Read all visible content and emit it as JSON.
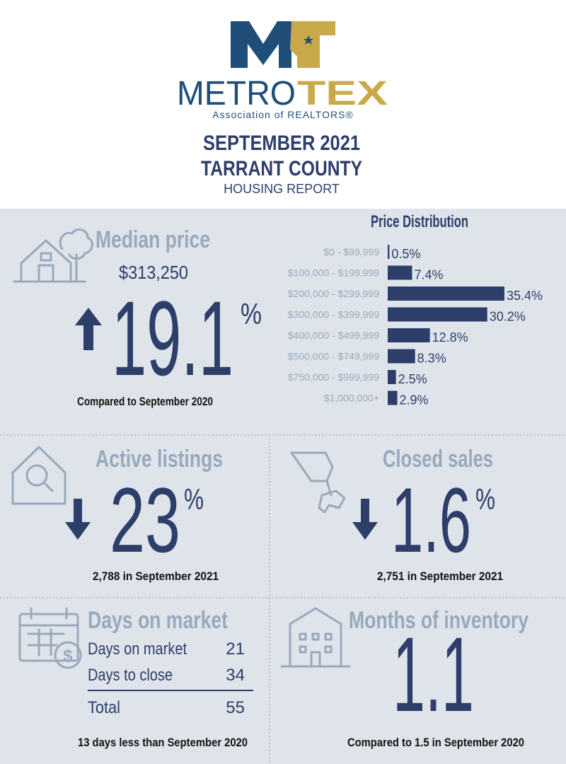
{
  "header": {
    "logo_left": "METRO",
    "logo_right": "TEX",
    "logo_tagline": "Association of REALTORS®",
    "title_line1": "SEPTEMBER 2021",
    "title_line2": "TARRANT COUNTY",
    "subtitle": "HOUSING REPORT"
  },
  "median_price": {
    "label": "Median price",
    "price": "$313,250",
    "change": "19.1",
    "unit": "%",
    "note": "Compared to September 2020"
  },
  "price_distribution": {
    "title": "Price Distribution",
    "categories": [
      "$0 - $99,999",
      "$100,000 - $199,999",
      "$200,000 - $299,999",
      "$300,000 - $399,999",
      "$400,000 - $499,999",
      "$500,000 - $749,999",
      "$750,000 - $999,999",
      "$1,000,000+"
    ],
    "values": [
      0.5,
      7.4,
      35.4,
      30.2,
      12.8,
      8.3,
      2.5,
      2.9
    ],
    "value_labels": [
      "0.5%",
      "7.4%",
      "35.4%",
      "30.2%",
      "12.8%",
      "8.3%",
      "2.5%",
      "2.9%"
    ],
    "color": "#2d3e6b"
  },
  "active_listings": {
    "label": "Active listings",
    "change": "23",
    "unit": "%",
    "note": "2,788 in September 2021"
  },
  "closed_sales": {
    "label": "Closed sales",
    "change": "1.6",
    "unit": "%",
    "note": "2,751 in September 2021"
  },
  "days_on_market": {
    "label": "Days on market",
    "rows": [
      [
        "Days on market",
        "21"
      ],
      [
        "Days to close",
        "34"
      ]
    ],
    "total": [
      "Total",
      "55"
    ],
    "note": "13 days less than September 2020"
  },
  "months_of_inventory": {
    "label": "Months of inventory",
    "value": "1.1",
    "note": "Compared to 1.5 in September 2020"
  }
}
